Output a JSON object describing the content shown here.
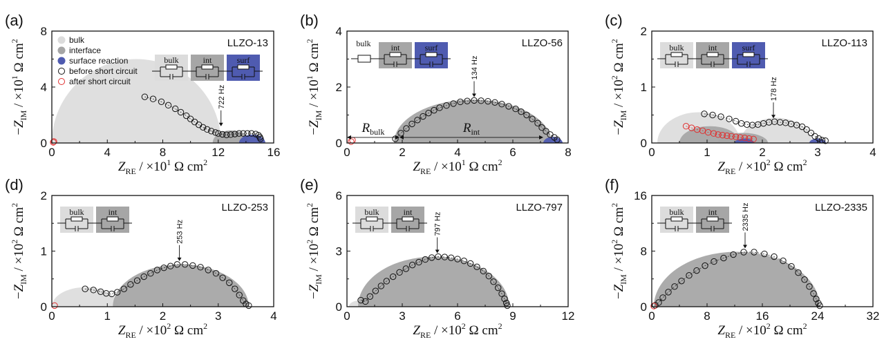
{
  "legend": {
    "items": [
      {
        "label": "bulk",
        "color": "#dcdcdc",
        "kind": "dot"
      },
      {
        "label": "interface",
        "color": "#a6a6a6",
        "kind": "dot"
      },
      {
        "label": "surface reaction",
        "color": "#4f5bb0",
        "kind": "dot"
      },
      {
        "label": "before short circuit",
        "color": "#111111",
        "kind": "ring"
      },
      {
        "label": "after short circuit",
        "color": "#e03030",
        "kind": "ring"
      }
    ]
  },
  "circuit_labels": {
    "bulk": "bulk",
    "int": "int",
    "surf": "surf"
  },
  "colors": {
    "bulk": "#dcdcdc",
    "interface": "#a6a6a6",
    "surface": "#4f5bb0",
    "before": "#111111",
    "after": "#e03030"
  },
  "chart_data": [
    {
      "type": "scatter",
      "panel": "(a)",
      "sample": "LLZO-13",
      "xlabel_exp": "1",
      "ylabel_exp": "1",
      "xlim": [
        0,
        16
      ],
      "ylim": [
        0,
        8
      ],
      "xticks": [
        "0",
        "4",
        "8",
        "12",
        "16"
      ],
      "yticks": [
        "0",
        "4",
        "8"
      ],
      "circuit": [
        "bulk",
        "int",
        "surf"
      ],
      "annotations": [
        {
          "text": "722 Hz",
          "x": 12.2,
          "y": 0.95
        }
      ],
      "arcs": [
        {
          "kind": "bulk",
          "x0": 0,
          "x1": 12.2,
          "h": 6.0
        },
        {
          "kind": "interface",
          "x0": 11.6,
          "x1": 14.2,
          "h": 0.9
        },
        {
          "kind": "surface",
          "x0": 13.5,
          "x1": 15.4,
          "h": 0.6
        }
      ],
      "series": [
        {
          "name": "before short circuit",
          "points": [
            [
              6.7,
              3.3
            ],
            [
              7.3,
              3.15
            ],
            [
              7.9,
              2.95
            ],
            [
              8.4,
              2.7
            ],
            [
              8.9,
              2.45
            ],
            [
              9.3,
              2.2
            ],
            [
              9.7,
              1.95
            ],
            [
              10.0,
              1.72
            ],
            [
              10.3,
              1.5
            ],
            [
              10.6,
              1.3
            ],
            [
              10.9,
              1.12
            ],
            [
              11.2,
              0.97
            ],
            [
              11.5,
              0.85
            ],
            [
              11.8,
              0.75
            ],
            [
              12.0,
              0.68
            ],
            [
              12.3,
              0.62
            ],
            [
              12.6,
              0.58
            ],
            [
              12.9,
              0.6
            ],
            [
              13.2,
              0.64
            ],
            [
              13.5,
              0.68
            ],
            [
              13.8,
              0.68
            ],
            [
              14.1,
              0.68
            ],
            [
              14.4,
              0.68
            ],
            [
              14.7,
              0.64
            ],
            [
              14.9,
              0.55
            ],
            [
              15.0,
              0.42
            ],
            [
              15.05,
              0.3
            ]
          ]
        },
        {
          "name": "after short circuit",
          "points": [
            [
              0.1,
              0.05
            ],
            [
              0.15,
              0.1
            ]
          ]
        }
      ]
    },
    {
      "type": "scatter",
      "panel": "(b)",
      "sample": "LLZO-56",
      "xlabel_exp": "1",
      "ylabel_exp": "1",
      "xlim": [
        0,
        8
      ],
      "ylim": [
        0,
        4
      ],
      "xticks": [
        "0",
        "2",
        "4",
        "6",
        "8"
      ],
      "yticks": [
        "0",
        "2",
        "4"
      ],
      "circuit": [
        "bulk-resistor",
        "int",
        "surf"
      ],
      "annotations": [
        {
          "text": "134 Hz",
          "x": 4.6,
          "y": 1.52
        }
      ],
      "r_labels": [
        {
          "text": "R",
          "sub": "bulk",
          "x0": 0,
          "x1": 1.9,
          "y": 0.2
        },
        {
          "text": "R",
          "sub": "int",
          "x0": 1.9,
          "x1": 7.1,
          "y": 0.2
        }
      ],
      "arcs": [
        {
          "kind": "interface",
          "x0": 1.7,
          "x1": 7.4,
          "h": 1.55
        },
        {
          "kind": "surface",
          "x0": 7.1,
          "x1": 7.8,
          "h": 0.22
        }
      ],
      "series": [
        {
          "name": "before short circuit",
          "points": [
            [
              1.75,
              0.15
            ],
            [
              1.95,
              0.35
            ],
            [
              2.15,
              0.52
            ],
            [
              2.35,
              0.68
            ],
            [
              2.55,
              0.82
            ],
            [
              2.75,
              0.95
            ],
            [
              2.95,
              1.07
            ],
            [
              3.15,
              1.17
            ],
            [
              3.35,
              1.26
            ],
            [
              3.6,
              1.34
            ],
            [
              3.85,
              1.41
            ],
            [
              4.1,
              1.47
            ],
            [
              4.35,
              1.5
            ],
            [
              4.6,
              1.52
            ],
            [
              4.85,
              1.51
            ],
            [
              5.1,
              1.49
            ],
            [
              5.35,
              1.45
            ],
            [
              5.6,
              1.39
            ],
            [
              5.85,
              1.31
            ],
            [
              6.1,
              1.22
            ],
            [
              6.3,
              1.12
            ],
            [
              6.5,
              1.0
            ],
            [
              6.7,
              0.86
            ],
            [
              6.9,
              0.71
            ],
            [
              7.05,
              0.55
            ],
            [
              7.2,
              0.42
            ],
            [
              7.35,
              0.3
            ],
            [
              7.5,
              0.2
            ],
            [
              7.6,
              0.12
            ]
          ]
        },
        {
          "name": "after short circuit",
          "points": [
            [
              0.15,
              0.05
            ],
            [
              0.2,
              0.1
            ]
          ]
        }
      ]
    },
    {
      "type": "scatter",
      "panel": "(c)",
      "sample": "LLZO-113",
      "xlabel_exp": "2",
      "ylabel_exp": "2",
      "xlim": [
        0,
        4
      ],
      "ylim": [
        0,
        2
      ],
      "xticks": [
        "0",
        "1",
        "2",
        "3",
        "4"
      ],
      "yticks": [
        "0",
        "1",
        "2"
      ],
      "circuit": [
        "bulk",
        "int",
        "surf"
      ],
      "annotations": [
        {
          "text": "178 Hz",
          "x": 2.2,
          "y": 0.38
        }
      ],
      "arcs": [
        {
          "kind": "bulk",
          "x0": 0.1,
          "x1": 1.6,
          "h": 0.55
        },
        {
          "kind": "interface",
          "x0": 0.5,
          "x1": 1.6,
          "h": 0.3
        },
        {
          "kind": "bulk",
          "x0": 1.6,
          "x1": 2.9,
          "h": 0.45
        },
        {
          "kind": "interface",
          "x0": 1.2,
          "x1": 2.1,
          "h": 0.18
        },
        {
          "kind": "surface",
          "x0": 1.5,
          "x1": 1.85,
          "h": 0.08
        },
        {
          "kind": "surface",
          "x0": 2.85,
          "x1": 3.15,
          "h": 0.08
        }
      ],
      "series": [
        {
          "name": "before short circuit",
          "points": [
            [
              0.95,
              0.52
            ],
            [
              1.1,
              0.5
            ],
            [
              1.25,
              0.47
            ],
            [
              1.4,
              0.43
            ],
            [
              1.52,
              0.39
            ],
            [
              1.62,
              0.35
            ],
            [
              1.72,
              0.33
            ],
            [
              1.82,
              0.32
            ],
            [
              1.92,
              0.33
            ],
            [
              2.02,
              0.35
            ],
            [
              2.12,
              0.37
            ],
            [
              2.22,
              0.38
            ],
            [
              2.32,
              0.37
            ],
            [
              2.42,
              0.36
            ],
            [
              2.52,
              0.34
            ],
            [
              2.62,
              0.32
            ],
            [
              2.72,
              0.29
            ],
            [
              2.8,
              0.24
            ],
            [
              2.88,
              0.18
            ],
            [
              2.95,
              0.12
            ],
            [
              3.02,
              0.08
            ],
            [
              3.08,
              0.05
            ],
            [
              3.14,
              0.04
            ]
          ]
        },
        {
          "name": "after short circuit",
          "points": [
            [
              0.62,
              0.3
            ],
            [
              0.72,
              0.27
            ],
            [
              0.82,
              0.24
            ],
            [
              0.92,
              0.22
            ],
            [
              1.02,
              0.19
            ],
            [
              1.12,
              0.17
            ],
            [
              1.2,
              0.15
            ],
            [
              1.28,
              0.14
            ],
            [
              1.36,
              0.13
            ],
            [
              1.44,
              0.12
            ],
            [
              1.52,
              0.11
            ],
            [
              1.6,
              0.1
            ],
            [
              1.68,
              0.09
            ],
            [
              1.76,
              0.08
            ],
            [
              1.84,
              0.07
            ]
          ]
        }
      ]
    },
    {
      "type": "scatter",
      "panel": "(d)",
      "sample": "LLZO-253",
      "xlabel_exp": "2",
      "ylabel_exp": "2",
      "xlim": [
        0,
        4
      ],
      "ylim": [
        0,
        2
      ],
      "xticks": [
        "0",
        "1",
        "2",
        "3",
        "4"
      ],
      "yticks": [
        "0",
        "1",
        "2"
      ],
      "circuit": [
        "bulk",
        "int"
      ],
      "annotations": [
        {
          "text": "253 Hz",
          "x": 2.3,
          "y": 0.76
        }
      ],
      "arcs": [
        {
          "kind": "bulk",
          "x0": 0,
          "x1": 1.2,
          "h": 0.35
        },
        {
          "kind": "interface",
          "x0": 1.1,
          "x1": 3.55,
          "h": 0.76
        }
      ],
      "series": [
        {
          "name": "before short circuit",
          "points": [
            [
              0.6,
              0.32
            ],
            [
              0.75,
              0.3
            ],
            [
              0.88,
              0.27
            ],
            [
              0.98,
              0.24
            ],
            [
              1.08,
              0.23
            ],
            [
              1.18,
              0.26
            ],
            [
              1.3,
              0.32
            ],
            [
              1.42,
              0.4
            ],
            [
              1.54,
              0.47
            ],
            [
              1.66,
              0.54
            ],
            [
              1.78,
              0.6
            ],
            [
              1.9,
              0.66
            ],
            [
              2.02,
              0.7
            ],
            [
              2.14,
              0.73
            ],
            [
              2.26,
              0.76
            ],
            [
              2.4,
              0.76
            ],
            [
              2.54,
              0.74
            ],
            [
              2.68,
              0.71
            ],
            [
              2.82,
              0.66
            ],
            [
              2.96,
              0.6
            ],
            [
              3.08,
              0.52
            ],
            [
              3.2,
              0.43
            ],
            [
              3.3,
              0.32
            ],
            [
              3.38,
              0.21
            ],
            [
              3.45,
              0.11
            ],
            [
              3.5,
              0.05
            ],
            [
              3.55,
              0.02
            ]
          ]
        },
        {
          "name": "after short circuit",
          "points": [
            [
              0.05,
              0.02
            ]
          ]
        }
      ]
    },
    {
      "type": "scatter",
      "panel": "(e)",
      "sample": "LLZO-797",
      "xlabel_exp": "2",
      "ylabel_exp": "2",
      "xlim": [
        0,
        12
      ],
      "ylim": [
        0,
        6
      ],
      "xticks": [
        "0",
        "3",
        "6",
        "9",
        "12"
      ],
      "yticks": [
        "0",
        "3",
        "6"
      ],
      "circuit": [
        "bulk",
        "int"
      ],
      "annotations": [
        {
          "text": "797 Hz",
          "x": 4.9,
          "y": 2.7
        }
      ],
      "arcs": [
        {
          "kind": "bulk",
          "x0": 0.1,
          "x1": 1.4,
          "h": 0.35
        },
        {
          "kind": "interface",
          "x0": 0.6,
          "x1": 8.8,
          "h": 2.7
        }
      ],
      "series": [
        {
          "name": "before short circuit",
          "points": [
            [
              0.75,
              0.35
            ],
            [
              1.0,
              0.28
            ],
            [
              1.25,
              0.55
            ],
            [
              1.55,
              0.85
            ],
            [
              1.85,
              1.12
            ],
            [
              2.15,
              1.38
            ],
            [
              2.5,
              1.62
            ],
            [
              2.85,
              1.85
            ],
            [
              3.2,
              2.05
            ],
            [
              3.55,
              2.25
            ],
            [
              3.9,
              2.4
            ],
            [
              4.25,
              2.55
            ],
            [
              4.6,
              2.65
            ],
            [
              4.95,
              2.7
            ],
            [
              5.3,
              2.68
            ],
            [
              5.65,
              2.64
            ],
            [
              6.0,
              2.57
            ],
            [
              6.35,
              2.47
            ],
            [
              6.7,
              2.33
            ],
            [
              7.05,
              2.15
            ],
            [
              7.4,
              1.92
            ],
            [
              7.7,
              1.65
            ],
            [
              7.95,
              1.35
            ],
            [
              8.2,
              1.02
            ],
            [
              8.4,
              0.7
            ],
            [
              8.55,
              0.42
            ],
            [
              8.65,
              0.2
            ],
            [
              8.7,
              0.06
            ]
          ]
        },
        {
          "name": "after short circuit",
          "points": []
        }
      ]
    },
    {
      "type": "scatter",
      "panel": "(f)",
      "sample": "LLZO-2335",
      "xlabel_exp": "2",
      "ylabel_exp": "2",
      "xlim": [
        0,
        32
      ],
      "ylim": [
        0,
        16
      ],
      "xticks": [
        "0",
        "8",
        "16",
        "24",
        "32"
      ],
      "yticks": [
        "0",
        "8",
        "16"
      ],
      "circuit": [
        "bulk",
        "int"
      ],
      "annotations": [
        {
          "text": "2335 Hz",
          "x": 13.5,
          "y": 7.9
        }
      ],
      "arcs": [
        {
          "kind": "interface",
          "x0": 0.3,
          "x1": 24.3,
          "h": 7.9
        }
      ],
      "series": [
        {
          "name": "before short circuit",
          "points": [
            [
              0.5,
              0.2
            ],
            [
              1.0,
              0.6
            ],
            [
              1.6,
              1.3
            ],
            [
              2.4,
              2.1
            ],
            [
              3.3,
              2.9
            ],
            [
              4.3,
              3.7
            ],
            [
              5.4,
              4.5
            ],
            [
              6.5,
              5.2
            ],
            [
              7.7,
              5.9
            ],
            [
              9.0,
              6.5
            ],
            [
              10.4,
              7.0
            ],
            [
              11.8,
              7.5
            ],
            [
              13.3,
              7.85
            ],
            [
              14.8,
              7.85
            ],
            [
              16.3,
              7.6
            ],
            [
              17.7,
              7.2
            ],
            [
              19.0,
              6.6
            ],
            [
              20.2,
              5.8
            ],
            [
              21.2,
              4.9
            ],
            [
              22.1,
              3.9
            ],
            [
              22.8,
              2.9
            ],
            [
              23.4,
              1.9
            ],
            [
              23.8,
              1.1
            ],
            [
              24.1,
              0.5
            ],
            [
              24.3,
              0.15
            ]
          ]
        },
        {
          "name": "after short circuit",
          "points": [
            [
              0.3,
              0.1
            ]
          ]
        }
      ]
    }
  ]
}
